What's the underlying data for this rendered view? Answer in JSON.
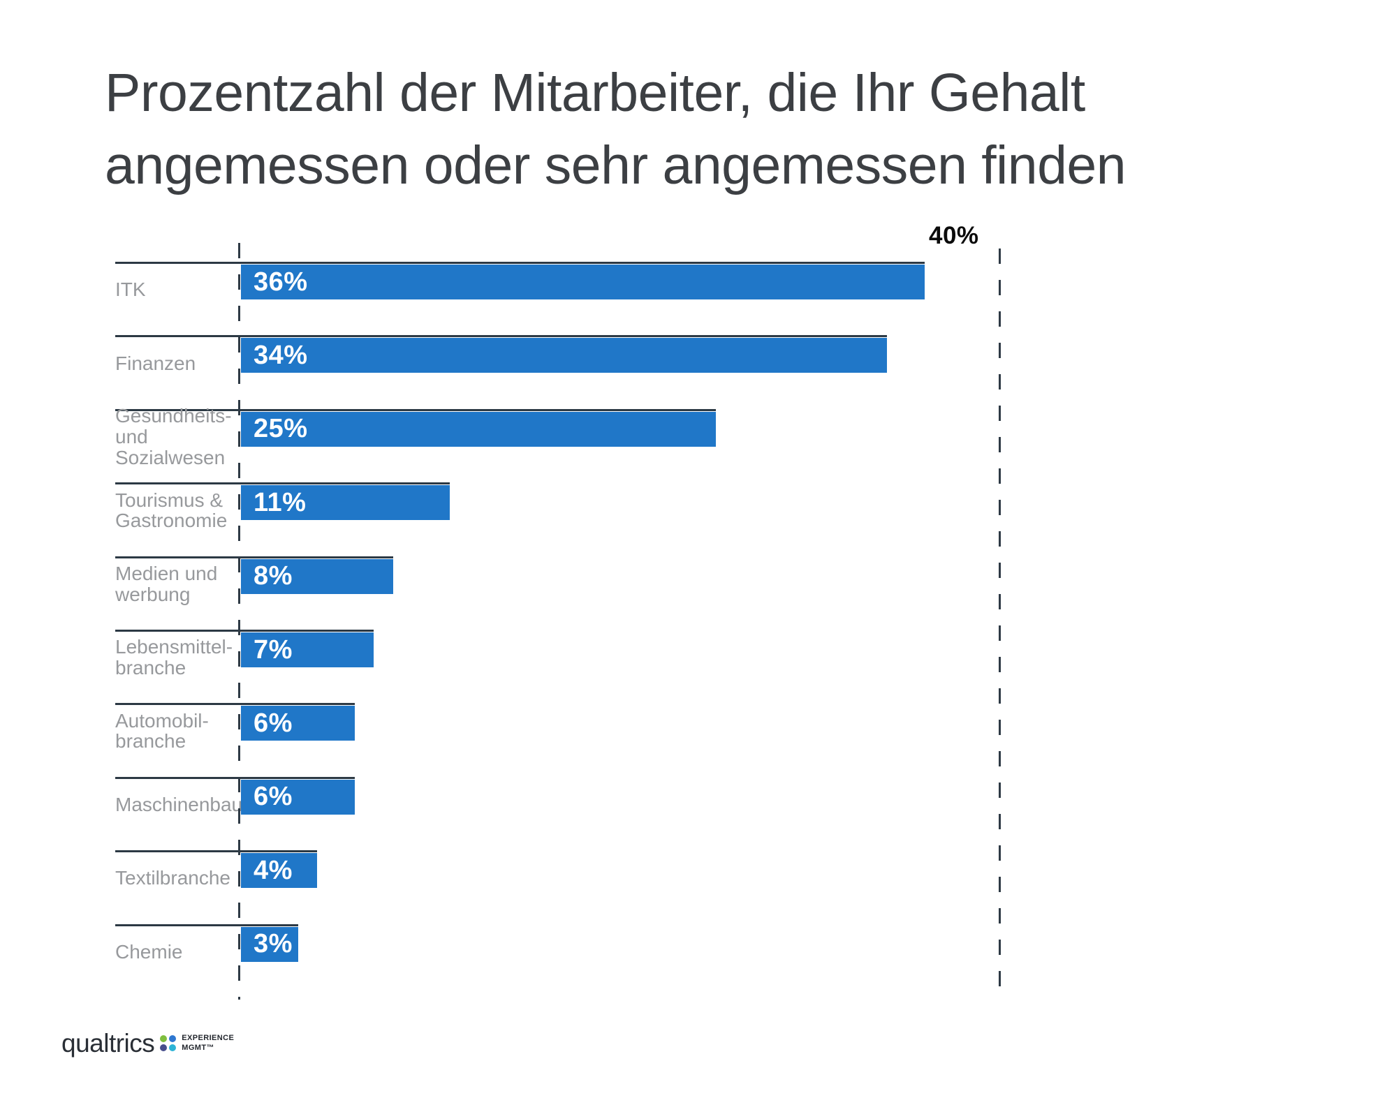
{
  "title": "Prozentzahl der Mitarbeiter, die Ihr Gehalt angemessen oder sehr angemessen finden",
  "axis": {
    "max_label": "40%",
    "max_value": 40
  },
  "chart_data": {
    "type": "bar",
    "orientation": "horizontal",
    "title": "Prozentzahl der Mitarbeiter, die Ihr Gehalt angemessen oder sehr angemessen finden",
    "categories": [
      "ITK",
      "Finanzen",
      "Gesundheits- und Sozialwesen",
      "Tourismus & Gastronomie",
      "Medien und werbung",
      "Lebensmittelbranche",
      "Automobilbranche",
      "Maschinenbau",
      "Textilbranche",
      "Chemie"
    ],
    "display_labels": [
      [
        "ITK"
      ],
      [
        "Finanzen"
      ],
      [
        "Gesundheits-",
        "und",
        "Sozialwesen"
      ],
      [
        "Tourismus &",
        "Gastronomie"
      ],
      [
        "Medien und",
        "werbung"
      ],
      [
        "Lebensmittel-",
        "branche"
      ],
      [
        "Automobil-",
        "branche"
      ],
      [
        "Maschinenbau"
      ],
      [
        "Textilbranche"
      ],
      [
        "Chemie"
      ]
    ],
    "values": [
      36,
      34,
      25,
      11,
      8,
      7,
      6,
      6,
      4,
      3
    ],
    "value_labels": [
      "36%",
      "34%",
      "25%",
      "11%",
      "8%",
      "7%",
      "6%",
      "6%",
      "4%",
      "3%"
    ],
    "xlim": [
      0,
      40
    ],
    "grid": "dashed reference lines at 0% and 40%",
    "legend": "none",
    "bar_color": "#2077c8",
    "line_color": "#2e3a45",
    "label_color": "#97999c",
    "value_label_color": "#ffffff"
  },
  "footer": {
    "brand": "qualtrics",
    "tagline_line1": "EXPERIENCE",
    "tagline_line2": "MGMT™",
    "dot_colors": [
      "#7fbe3e",
      "#2e77d0",
      "#474e8c",
      "#2cb3d6"
    ]
  }
}
